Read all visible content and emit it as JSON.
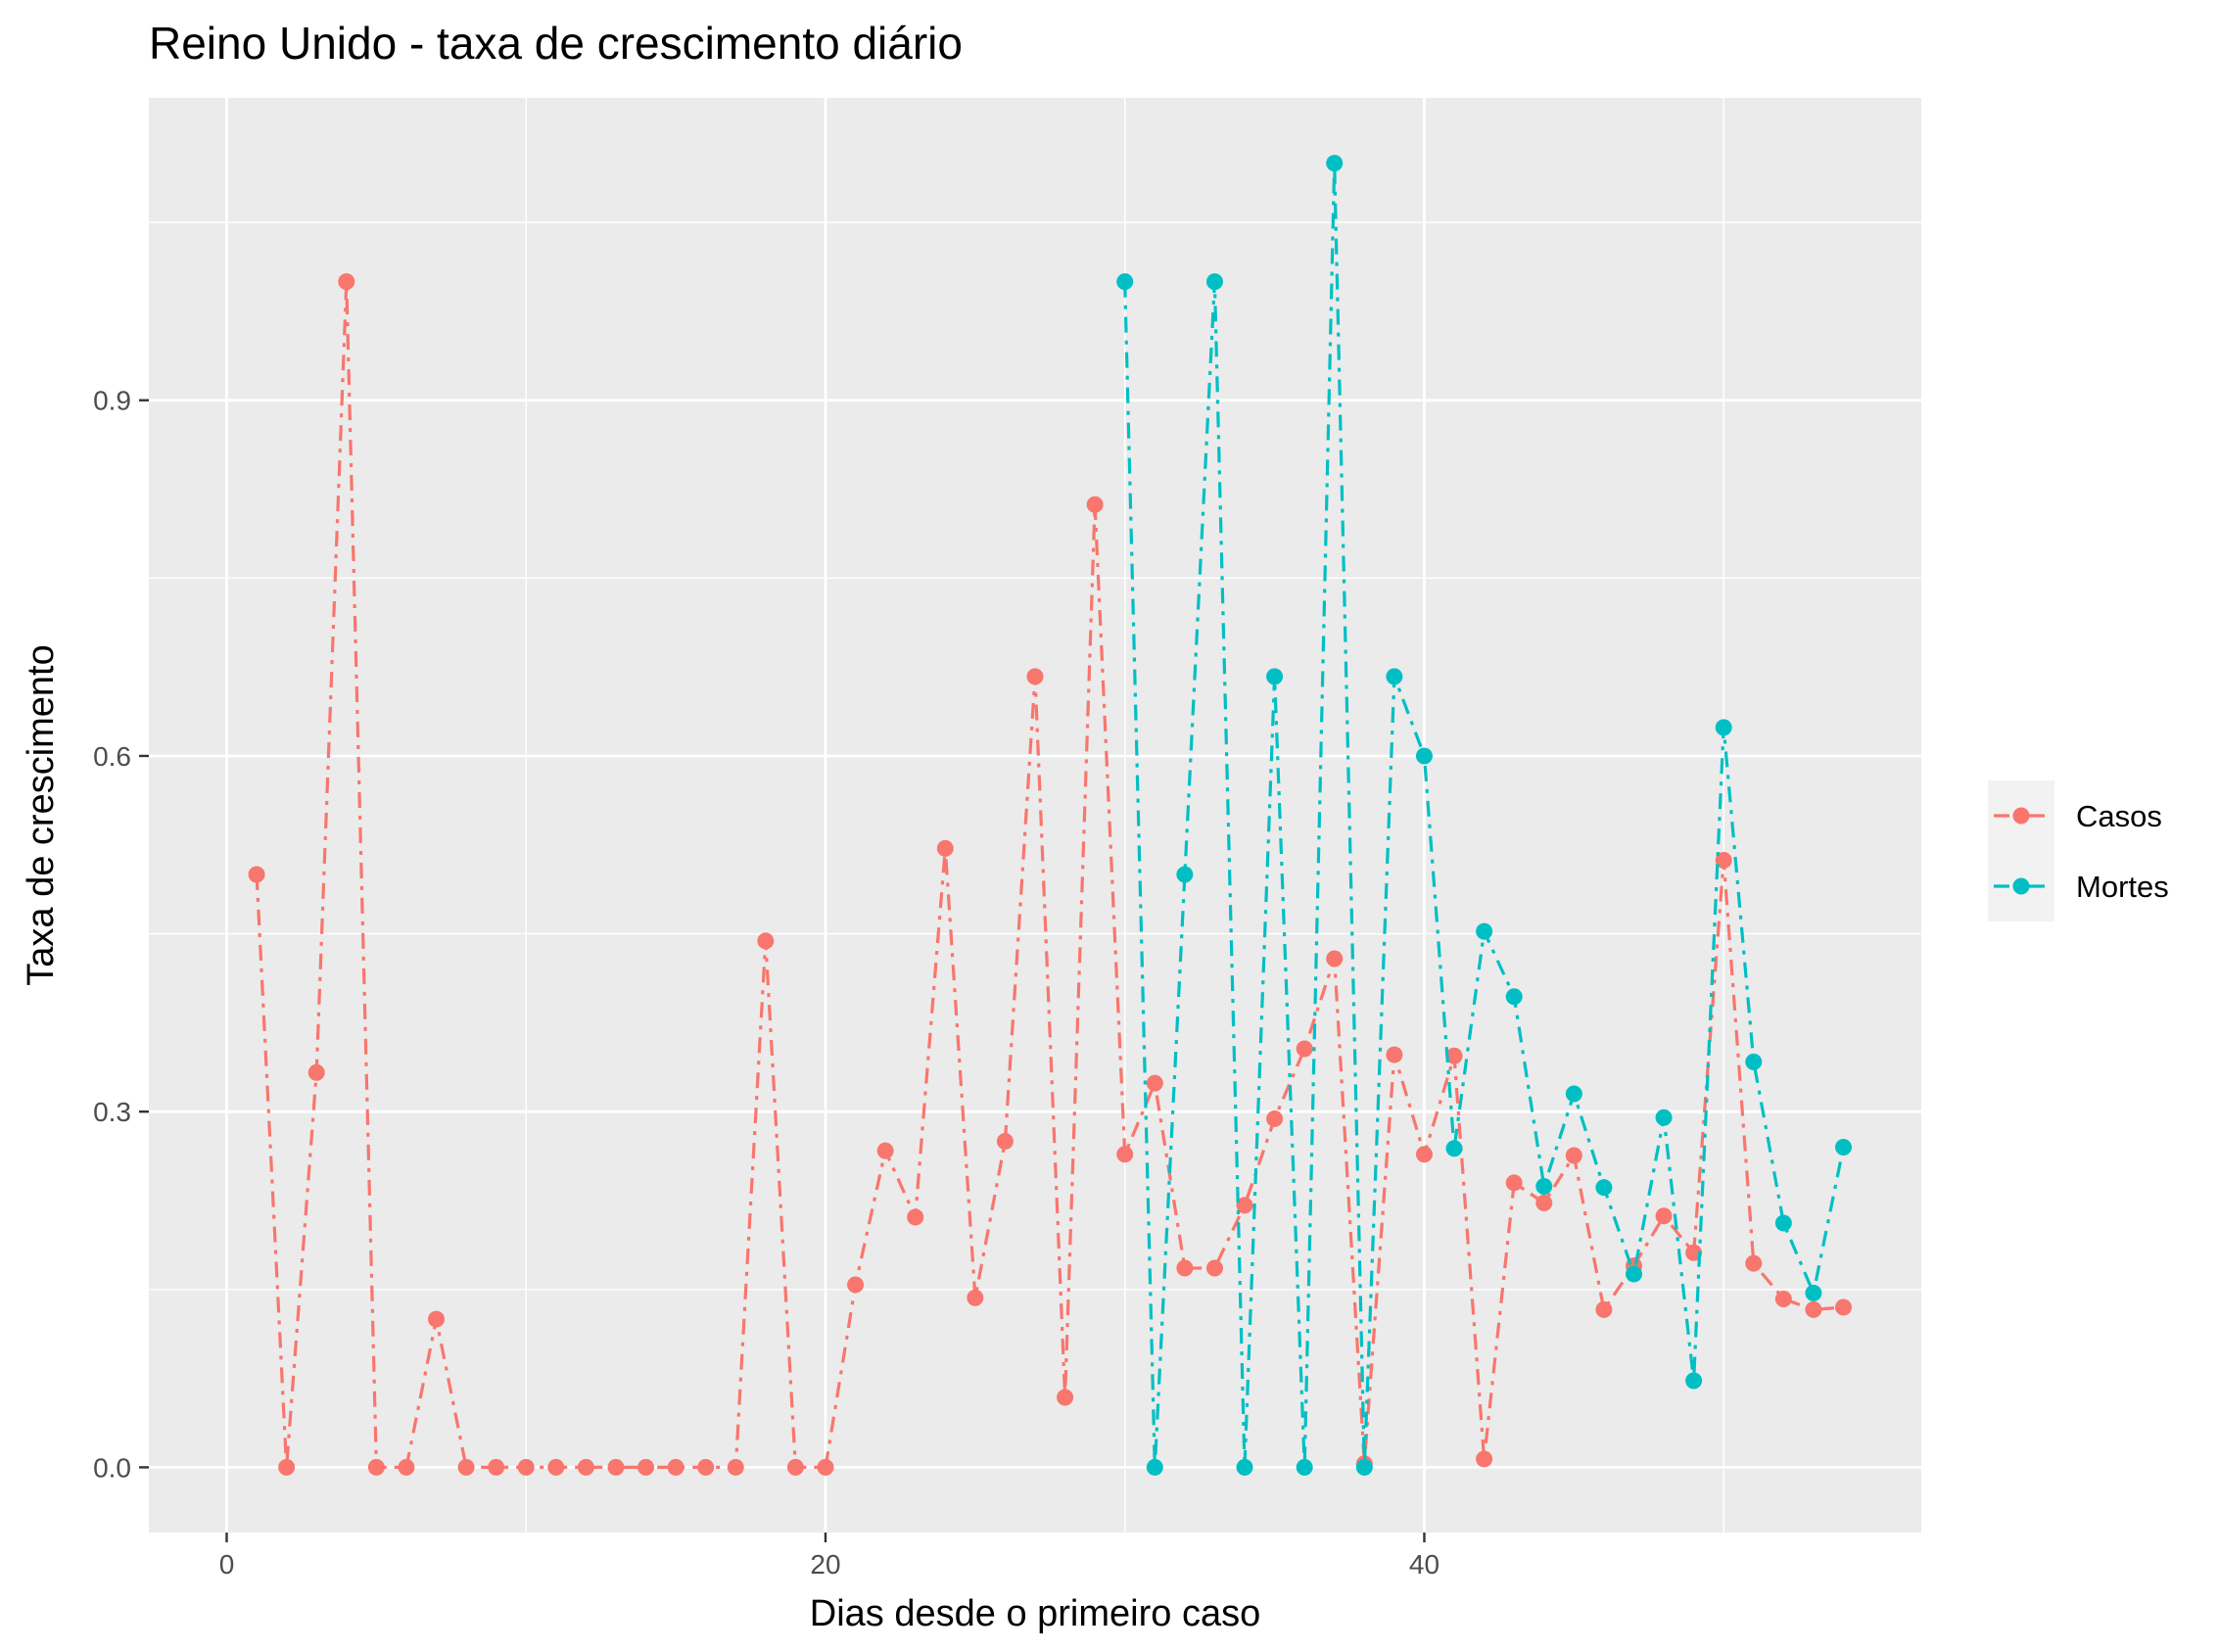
{
  "chart_data": {
    "type": "line",
    "title": "Reino Unido - taxa de crescimento diário",
    "xlabel": "Dias desde o primeiro caso",
    "ylabel": "Taxa de crescimento",
    "xlim": [
      -2.6,
      56.6
    ],
    "ylim": [
      -0.055,
      1.155
    ],
    "x_ticks": [
      0,
      20,
      40
    ],
    "x_tick_labels": [
      "0",
      "20",
      "40"
    ],
    "y_ticks": [
      0.0,
      0.3,
      0.6,
      0.9
    ],
    "y_tick_labels": [
      "0.0",
      "0.3",
      "0.6",
      "0.9"
    ],
    "grid": true,
    "legend_position": "right",
    "colors": {
      "panel": "#ebebeb",
      "grid": "#ffffff",
      "casos": "#f8766d",
      "mortes": "#00bfc4"
    },
    "series": [
      {
        "name": "Casos",
        "color": "#f8766d",
        "x": [
          1,
          2,
          3,
          4,
          5,
          6,
          7,
          8,
          9,
          10,
          11,
          12,
          13,
          14,
          15,
          16,
          17,
          18,
          19,
          20,
          21,
          22,
          23,
          24,
          25,
          26,
          27,
          28,
          29,
          30,
          31,
          32,
          33,
          34,
          35,
          36,
          37,
          38,
          39,
          40,
          41,
          42,
          43,
          44,
          45,
          46,
          47,
          48,
          49,
          50,
          51,
          52,
          53,
          54
        ],
        "y": [
          0.5,
          0.0,
          0.333,
          1.0,
          0.0,
          0.0,
          0.125,
          0.0,
          0.0,
          0.0,
          0.0,
          0.0,
          0.0,
          0.0,
          0.0,
          0.0,
          0.0,
          0.444,
          0.0,
          0.0,
          0.154,
          0.267,
          0.211,
          0.522,
          0.143,
          0.275,
          0.667,
          0.059,
          0.812,
          0.264,
          0.324,
          0.168,
          0.168,
          0.221,
          0.294,
          0.353,
          0.429,
          0.003,
          0.348,
          0.264,
          0.347,
          0.007,
          0.24,
          0.223,
          0.263,
          0.133,
          0.17,
          0.212,
          0.181,
          0.512,
          0.172,
          0.142,
          0.133,
          0.135
        ]
      },
      {
        "name": "Mortes",
        "color": "#00bfc4",
        "x": [
          30,
          31,
          32,
          33,
          34,
          35,
          36,
          37,
          38,
          39,
          40,
          41,
          42,
          43,
          44,
          45,
          46,
          47,
          48,
          49,
          50,
          51,
          52,
          53,
          54
        ],
        "y": [
          1.0,
          0.0,
          0.5,
          1.0,
          0.0,
          0.667,
          0.0,
          1.1,
          0.0,
          0.667,
          0.6,
          0.269,
          0.452,
          0.397,
          0.237,
          0.315,
          0.236,
          0.163,
          0.295,
          0.073,
          0.624,
          0.342,
          0.206,
          0.147,
          0.27
        ]
      }
    ]
  }
}
